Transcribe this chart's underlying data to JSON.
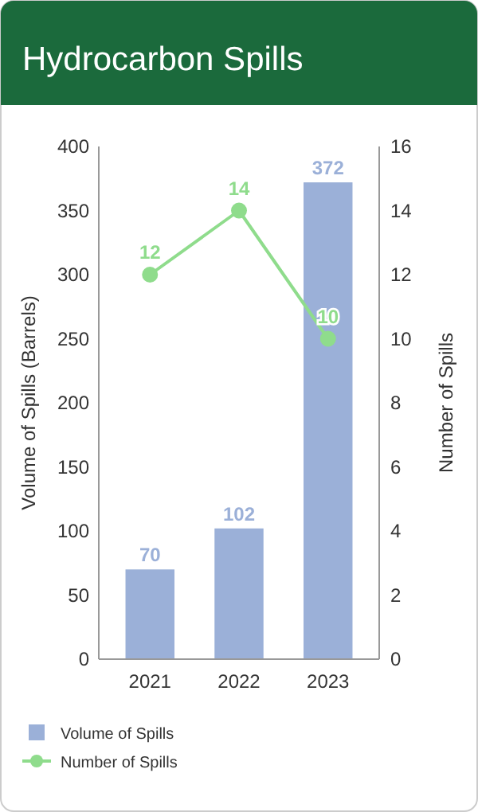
{
  "chart_data": {
    "type": "bar",
    "title": "Hydrocarbon Spills",
    "categories": [
      "2021",
      "2022",
      "2023"
    ],
    "series": [
      {
        "name": "Volume of Spills",
        "color": "#9bb0d8",
        "values": [
          70,
          102,
          372
        ]
      },
      {
        "name": "Number of Spills",
        "type": "line",
        "axis": "y2",
        "color": "#8fdc8c",
        "values": [
          12,
          14,
          10
        ],
        "marker": "circle"
      }
    ],
    "ylabel": "Volume of Spills (Barrels)",
    "y2label": "Number of Spills",
    "ylim": [
      0,
      400
    ],
    "yticks": [
      0,
      50,
      100,
      150,
      200,
      250,
      300,
      350,
      400
    ],
    "y2lim": [
      0,
      16
    ],
    "y2ticks": [
      0,
      2,
      4,
      6,
      8,
      10,
      12,
      14,
      16
    ],
    "data_labels": true,
    "grid": false,
    "legend": "bottom"
  }
}
